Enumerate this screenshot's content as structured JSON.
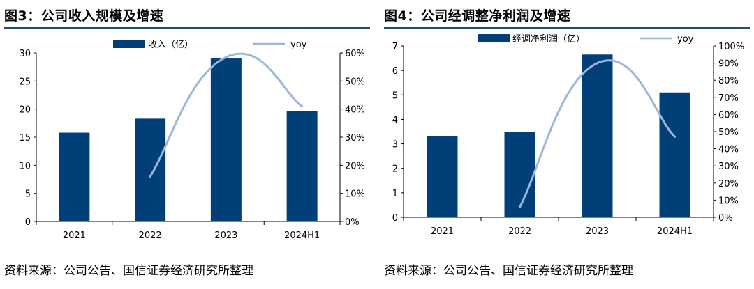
{
  "charts": [
    {
      "figure_title": "图3：公司收入规模及增速",
      "source": "资料来源：公司公告、国信证券经济研究所整理",
      "bar_color": "#003f78",
      "line_color": "#9eb5dc",
      "legend": {
        "bar_label": "收入（亿）",
        "line_label": "yoy"
      },
      "y_left_ticks": [
        "0",
        "5",
        "10",
        "15",
        "20",
        "25",
        "30"
      ],
      "y_right_ticks": [
        "0%",
        "10%",
        "20%",
        "30%",
        "40%",
        "50%",
        "60%"
      ],
      "categories": [
        "2021",
        "2022",
        "2023",
        "2024H1"
      ]
    },
    {
      "figure_title": "图4：公司经调整净利润及增速",
      "source": "资料来源：公司公告、国信证券经济研究所整理",
      "bar_color": "#003f78",
      "line_color": "#9eb5dc",
      "legend": {
        "bar_label": "经调净利润（亿）",
        "line_label": "yoy"
      },
      "y_left_ticks": [
        "0",
        "1",
        "2",
        "3",
        "4",
        "5",
        "6",
        "7"
      ],
      "y_right_ticks": [
        "0%",
        "10%",
        "20%",
        "30%",
        "40%",
        "50%",
        "60%",
        "70%",
        "80%",
        "90%",
        "100%"
      ],
      "categories": [
        "2021",
        "2022",
        "2023",
        "2024H1"
      ]
    }
  ],
  "chart_data": [
    {
      "type": "bar",
      "categories": [
        "2021",
        "2022",
        "2023",
        "2024H1"
      ],
      "series": [
        {
          "name": "收入（亿）",
          "type": "bar",
          "axis": "left",
          "values": [
            15.8,
            18.3,
            29.0,
            19.7
          ]
        },
        {
          "name": "yoy",
          "type": "line",
          "axis": "right",
          "values": [
            null,
            0.16,
            0.585,
            0.41
          ]
        }
      ],
      "ylim": [
        0,
        30
      ],
      "y2lim": [
        0,
        0.6
      ],
      "legend_position": "top"
    },
    {
      "type": "bar",
      "categories": [
        "2021",
        "2022",
        "2023",
        "2024H1"
      ],
      "series": [
        {
          "name": "经调净利润（亿）",
          "type": "bar",
          "axis": "left",
          "values": [
            3.3,
            3.5,
            6.65,
            5.1
          ]
        },
        {
          "name": "yoy",
          "type": "line",
          "axis": "right",
          "values": [
            null,
            0.06,
            0.9,
            0.47
          ]
        }
      ],
      "ylim": [
        0,
        7
      ],
      "y2lim": [
        0,
        1.0
      ],
      "legend_position": "top"
    }
  ]
}
